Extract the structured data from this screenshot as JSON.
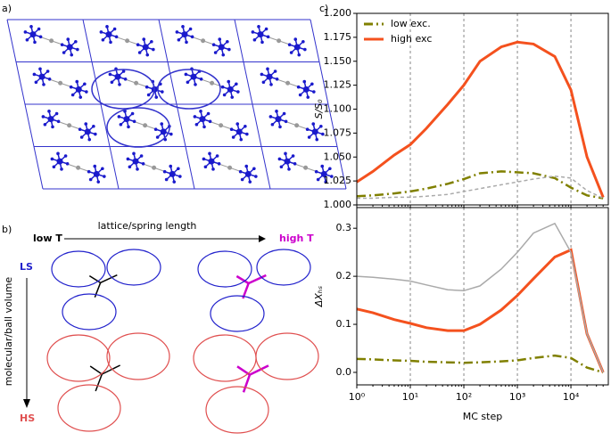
{
  "panels": {
    "a": {
      "label": "a)"
    },
    "b": {
      "label": "b)",
      "x_arrow_label": "lattice/spring length",
      "left": "low T",
      "right": "high T",
      "top": "LS",
      "bottom": "HS",
      "y_arrow_label": "molecular/ball volume"
    },
    "c": {
      "label": "c)"
    }
  },
  "chart_data": [
    {
      "type": "line",
      "ylabel": "S/S₀",
      "log_x": true,
      "grid": "x",
      "legend": "upper left",
      "xticklabels": false,
      "x": [
        1,
        2,
        5,
        10,
        20,
        50,
        100,
        200,
        500,
        1000,
        2000,
        5000,
        10000,
        20000,
        40000
      ],
      "xlim": [
        1,
        50000
      ],
      "xticks": [
        1,
        10,
        100,
        1000,
        10000
      ],
      "ylim": [
        1.0,
        1.2
      ],
      "yticks": [
        {
          "value": 1.0,
          "label": "1.000"
        },
        {
          "value": 1.025,
          "label": "1.025"
        },
        {
          "value": 1.05,
          "label": "1.050"
        },
        {
          "value": 1.075,
          "label": "1.075"
        },
        {
          "value": 1.1,
          "label": "1.100"
        },
        {
          "value": 1.125,
          "label": "1.125"
        },
        {
          "value": 1.15,
          "label": "1.150"
        },
        {
          "value": 1.175,
          "label": "1.175"
        },
        {
          "value": 1.2,
          "label": "1.200"
        }
      ],
      "series": [
        {
          "name": "low exc.",
          "color": "#808000",
          "linestyle": "dashdot",
          "values": [
            1.009,
            1.01,
            1.012,
            1.014,
            1.017,
            1.022,
            1.027,
            1.033,
            1.035,
            1.034,
            1.033,
            1.028,
            1.018,
            1.01,
            1.007
          ]
        },
        {
          "name": "high exc",
          "color": "#f4511e",
          "linestyle": "solid",
          "values": [
            1.024,
            1.035,
            1.052,
            1.063,
            1.08,
            1.105,
            1.125,
            1.15,
            1.165,
            1.17,
            1.168,
            1.155,
            1.12,
            1.05,
            1.008
          ]
        },
        {
          "color": "#aaaaaa",
          "linestyle": "dashed",
          "values": [
            1.007,
            1.007,
            1.008,
            1.008,
            1.009,
            1.011,
            1.014,
            1.017,
            1.021,
            1.024,
            1.027,
            1.03,
            1.028,
            1.015,
            1.007
          ]
        }
      ]
    },
    {
      "type": "line",
      "ylabel": "ΔXₕₛ",
      "xlabel": "MC step",
      "log_x": true,
      "grid": "x",
      "x": [
        1,
        2,
        5,
        10,
        20,
        50,
        100,
        200,
        500,
        1000,
        2000,
        5000,
        10000,
        20000,
        40000
      ],
      "xlim": [
        1,
        50000
      ],
      "xticks": [
        {
          "value": 1,
          "label": "10⁰"
        },
        {
          "value": 10,
          "label": "10¹"
        },
        {
          "value": 100,
          "label": "10²"
        },
        {
          "value": 1000,
          "label": "10³"
        },
        {
          "value": 10000,
          "label": "10⁴"
        }
      ],
      "ylim": [
        -0.026,
        0.343
      ],
      "yticks": [
        {
          "value": 0,
          "label": "0.0"
        },
        0.1,
        0.2,
        0.3
      ],
      "series": [
        {
          "name": "low exc.",
          "color": "#808000",
          "linestyle": "dashdot",
          "values": [
            0.028,
            0.027,
            0.025,
            0.024,
            0.022,
            0.021,
            0.02,
            0.021,
            0.023,
            0.025,
            0.03,
            0.035,
            0.03,
            0.01,
            0.0
          ]
        },
        {
          "name": "high exc",
          "color": "#f4511e",
          "linestyle": "solid",
          "values": [
            0.132,
            0.124,
            0.11,
            0.102,
            0.093,
            0.087,
            0.087,
            0.1,
            0.13,
            0.16,
            0.195,
            0.24,
            0.255,
            0.08,
            0.0
          ]
        },
        {
          "color": "#aaaaaa",
          "linestyle": "solid",
          "values": [
            0.2,
            0.198,
            0.194,
            0.19,
            0.182,
            0.172,
            0.17,
            0.18,
            0.215,
            0.25,
            0.29,
            0.31,
            0.25,
            0.08,
            0.0
          ]
        }
      ]
    }
  ]
}
